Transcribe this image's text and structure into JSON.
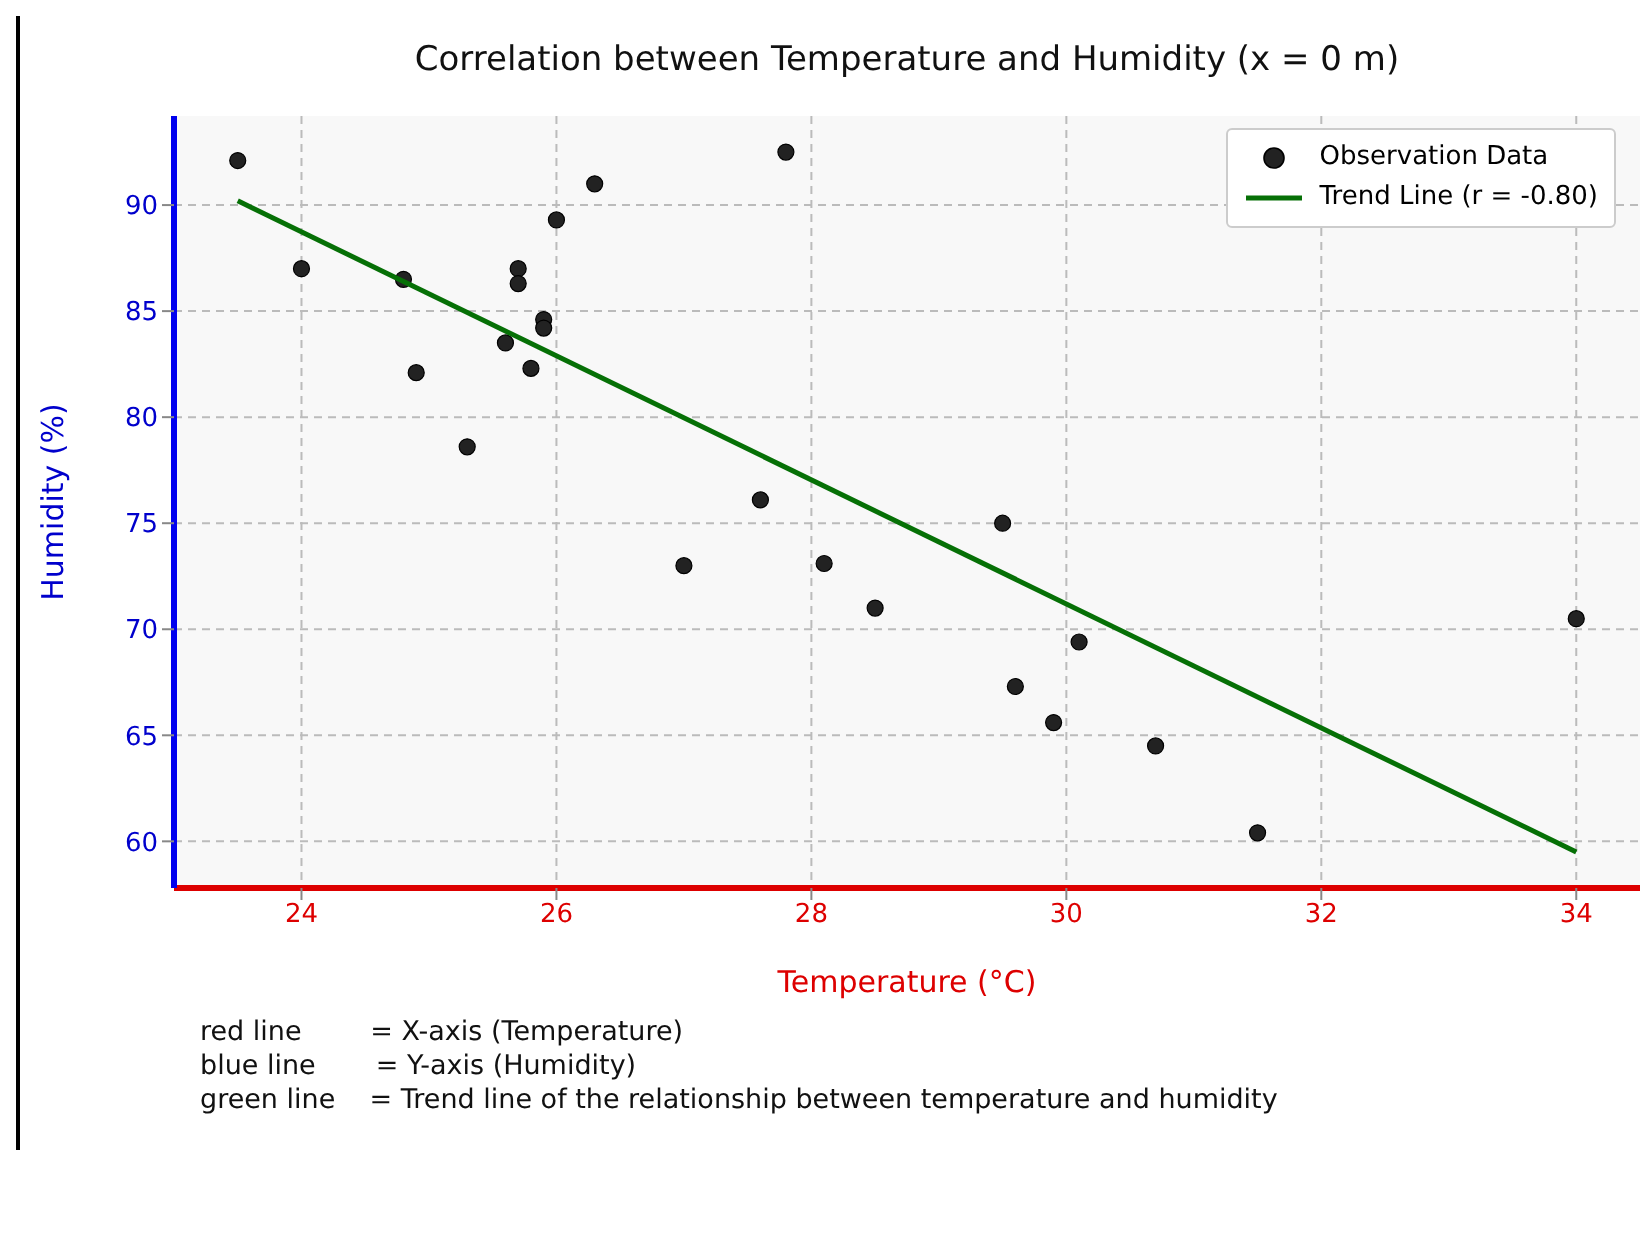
{
  "chart_data": {
    "type": "scatter",
    "title": "Correlation between Temperature and Humidity (x = 0 m)",
    "xlabel": "Temperature (°C)",
    "ylabel": "Humidity (%)",
    "x": [
      23.5,
      24,
      24.8,
      24.9,
      25.3,
      25.6,
      25.7,
      25.7,
      25.8,
      25.9,
      25.9,
      26,
      26.3,
      27,
      27.6,
      27.8,
      28.1,
      28.5,
      29.5,
      29.6,
      29.9,
      30.1,
      30.7,
      31.5,
      34
    ],
    "series": [
      {
        "name": "Observation Data",
        "type": "scatter",
        "color": "#222222",
        "marker": "circle",
        "values": [
          92.1,
          87,
          86.5,
          82.1,
          78.6,
          83.5,
          87,
          86.3,
          82.3,
          84.6,
          84.2,
          89.3,
          91,
          73,
          76.1,
          92.5,
          73.1,
          71,
          75,
          67.3,
          65.6,
          69.4,
          64.5,
          60.4,
          70.5
        ]
      },
      {
        "name": "Trend Line (r = -0.80)",
        "type": "line",
        "color": "#067006",
        "marker": "none",
        "line_style": "solid",
        "x": [
          23.5,
          34
        ],
        "values": [
          90.2,
          59.5
        ]
      }
    ],
    "xlim": [
      23,
      34.5
    ],
    "xticks": [
      24,
      26,
      28,
      30,
      32,
      34
    ],
    "ylim": [
      57.8,
      94.2
    ],
    "yticks": [
      60,
      65,
      70,
      75,
      80,
      85,
      90
    ],
    "grid": true,
    "legend": "top right",
    "annotations": [
      "red line        = X-axis (Temperature)",
      "blue line       = Y-axis (Humidity)",
      "green line    = Trend line of the relationship between temperature and humidity"
    ]
  }
}
